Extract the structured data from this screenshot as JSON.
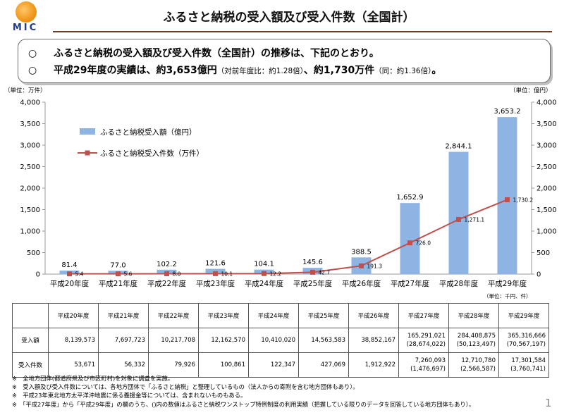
{
  "logo": {
    "text": "MIC"
  },
  "header": {
    "title": "ふるさと納税の受入額及び受入件数（全国計）"
  },
  "summary": {
    "mark": "○",
    "line1": "ふるさと納税の受入額及び受入件数（全国計）の推移は、下記のとおり。",
    "line2_a": "平成29年度の実績は、約3,653億円",
    "line2_b": "（対前年度比：約1.28倍）",
    "line2_c": "、約1,730万件",
    "line2_d": "（同：約1.36倍）",
    "line2_e": "。"
  },
  "chart_data": {
    "type": "bar+line",
    "title": "",
    "categories": [
      "平成20年度",
      "平成21年度",
      "平成22年度",
      "平成23年度",
      "平成24年度",
      "平成25年度",
      "平成26年度",
      "平成27年度",
      "平成28年度",
      "平成29年度"
    ],
    "series": [
      {
        "name": "ふるさと納税受入額（億円）",
        "type": "bar",
        "axis": "right",
        "color": "#8eb4e3",
        "values": [
          81.4,
          77.0,
          102.2,
          121.6,
          104.1,
          145.6,
          388.5,
          1652.9,
          2844.1,
          3653.2
        ],
        "labels": [
          "81.4",
          "77.0",
          "102.2",
          "121.6",
          "104.1",
          "145.6",
          "388.5",
          "1,652.9",
          "2,844.1",
          "3,653.2"
        ]
      },
      {
        "name": "ふるさと納税受入件数（万件）",
        "type": "line",
        "axis": "left",
        "color": "#c0504d",
        "values": [
          5.4,
          5.6,
          8.0,
          10.1,
          12.2,
          42.7,
          191.3,
          726.0,
          1271.1,
          1730.2
        ],
        "labels": [
          "5.4",
          "5.6",
          "8.0",
          "10.1",
          "12.2",
          "42.7",
          "191.3",
          "726.0",
          "1,271.1",
          "1,730.2"
        ]
      }
    ],
    "y_left": {
      "unit": "（単位：万件）",
      "range": [
        0,
        4000
      ],
      "ticks": [
        "0",
        "500",
        "1,000",
        "1,500",
        "2,000",
        "2,500",
        "3,000",
        "3,500",
        "4,000"
      ]
    },
    "y_right": {
      "unit": "（単位：億円）",
      "range": [
        0,
        4000
      ],
      "ticks": [
        "0",
        "500",
        "1,000",
        "1,500",
        "2,000",
        "2,500",
        "3,000",
        "3,500",
        "4,000"
      ]
    },
    "legend": [
      "ふるさと納税受入額（億円）",
      "ふるさと納税受入件数（万件）"
    ],
    "grid": false
  },
  "table": {
    "unit": "（単位：千円、件）",
    "headers": [
      "",
      "平成20年度",
      "平成21年度",
      "平成22年度",
      "平成23年度",
      "平成24年度",
      "平成25年度",
      "平成26年度",
      "平成27年度",
      "平成28年度",
      "平成29年度"
    ],
    "rows": [
      {
        "label": "受入額",
        "cells": [
          [
            "8,139,573"
          ],
          [
            "7,697,723"
          ],
          [
            "10,217,708"
          ],
          [
            "12,162,570"
          ],
          [
            "10,410,020"
          ],
          [
            "14,563,583"
          ],
          [
            "38,852,167"
          ],
          [
            "165,291,021",
            "(28,674,022)"
          ],
          [
            "284,408,875",
            "(50,123,497)"
          ],
          [
            "365,316,666",
            "(70,567,197)"
          ]
        ]
      },
      {
        "label": "受入件数",
        "cells": [
          [
            "53,671"
          ],
          [
            "56,332"
          ],
          [
            "79,926"
          ],
          [
            "100,861"
          ],
          [
            "122,347"
          ],
          [
            "427,069"
          ],
          [
            "1,912,922"
          ],
          [
            "7,260,093",
            "(1,476,697)"
          ],
          [
            "12,710,780",
            "(2,566,587)"
          ],
          [
            "17,301,584",
            "(3,760,741)"
          ]
        ]
      }
    ]
  },
  "notes": [
    "※　全地方団体(都道府県及び市区町村)を対象に調査を実施。",
    "※　受入額及び受入件数については、各地方団体で「ふるさと納税」と整理しているもの（法人からの寄附を含む地方団体もあり）。",
    "※　平成23年東北地方太平洋沖地震に係る義援金等については、含まれないものもある。",
    "※　「平成27年度」から「平成29年度」の欄のうち、()内の数値はふるさと納税ワンストップ特例制度の利用実績（把握している限りのデータを回答している地方団体もあり）。"
  ],
  "footer": {
    "page_number": "1"
  }
}
